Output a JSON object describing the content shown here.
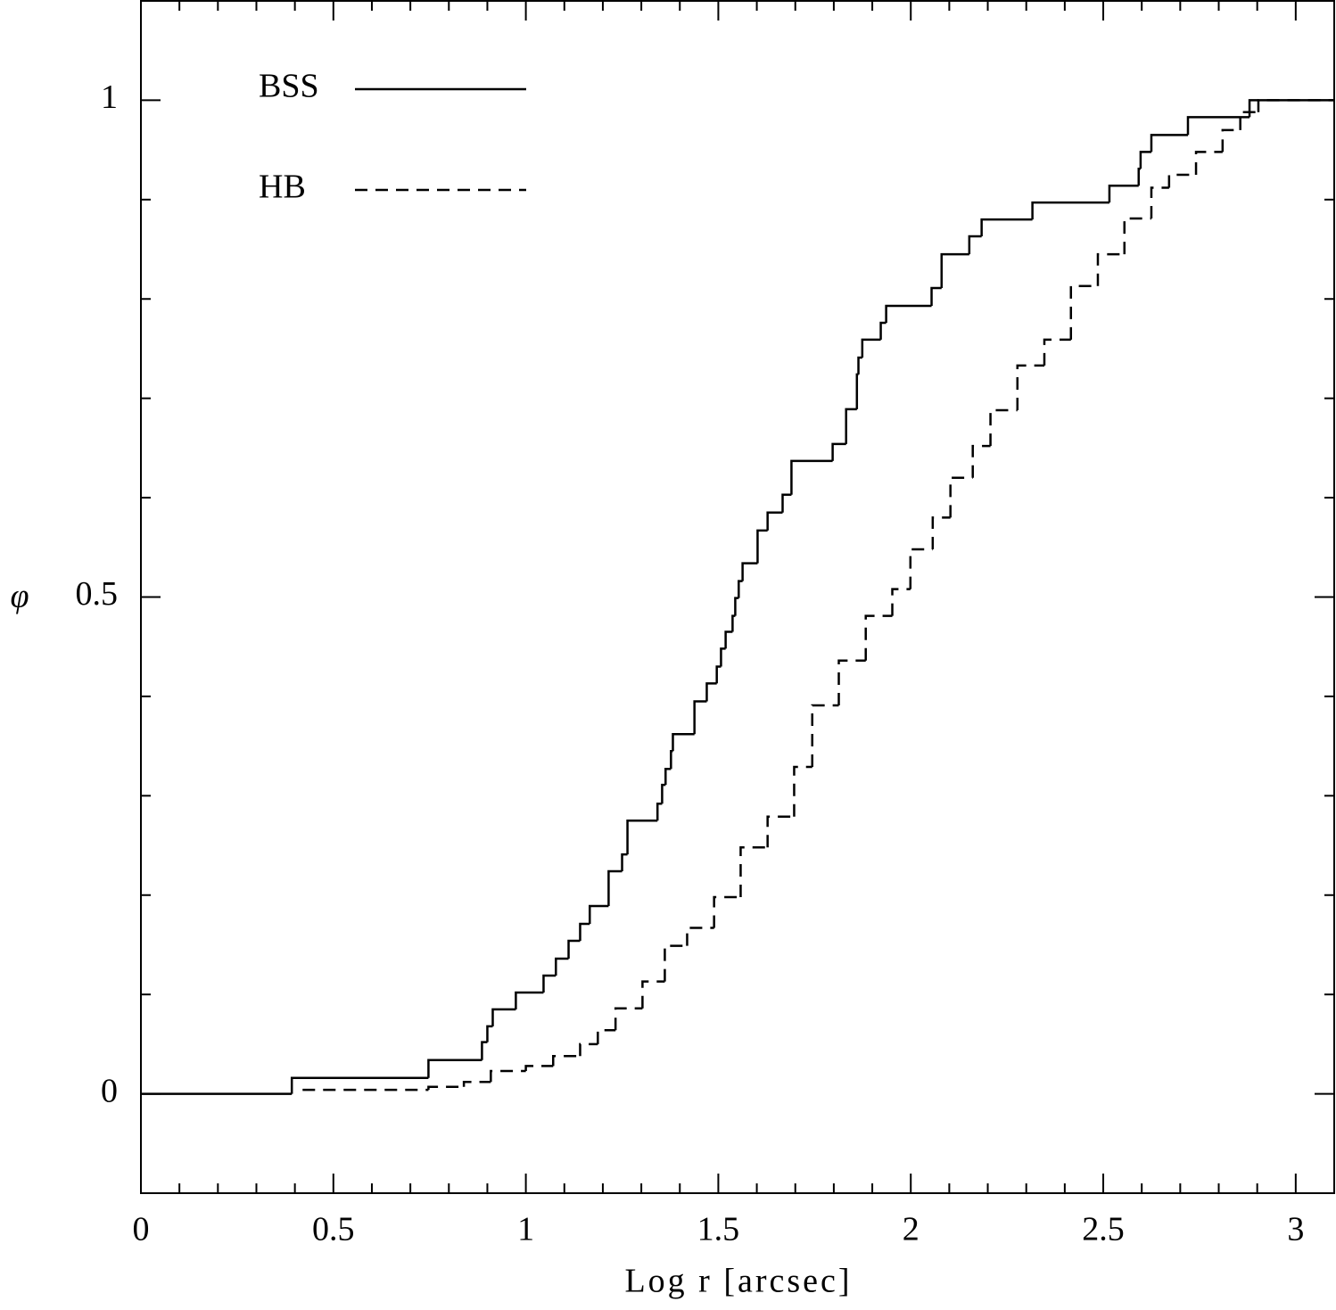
{
  "chart_data": {
    "type": "step",
    "x_label": "Log r [arcsec]",
    "y_label": "φ",
    "xlim": [
      0,
      3.1
    ],
    "ylim": [
      -0.1,
      1.1
    ],
    "xticks": [
      0,
      0.5,
      1,
      1.5,
      2,
      2.5,
      3
    ],
    "yticks": [
      0,
      0.5,
      1
    ],
    "xticks_minor": [
      0.1,
      0.2,
      0.3,
      0.4,
      0.6,
      0.7,
      0.8,
      0.9,
      1.1,
      1.2,
      1.3,
      1.4,
      1.6,
      1.7,
      1.8,
      1.9,
      2.1,
      2.2,
      2.3,
      2.4,
      2.6,
      2.7,
      2.8,
      2.9
    ],
    "yticks_minor": [
      0.1,
      0.2,
      0.3,
      0.4,
      0.6,
      0.7,
      0.8,
      0.9
    ],
    "legend": "upper left",
    "series": [
      {
        "name": "BSS",
        "color": "#000000",
        "linestyle": "solid",
        "x": [
          0,
          0.392,
          0.747,
          0.886,
          0.9,
          0.914,
          0.974,
          1.046,
          1.078,
          1.111,
          1.141,
          1.166,
          1.215,
          1.25,
          1.264,
          1.342,
          1.354,
          1.363,
          1.377,
          1.382,
          1.438,
          1.47,
          1.496,
          1.507,
          1.519,
          1.537,
          1.544,
          1.553,
          1.563,
          1.602,
          1.628,
          1.667,
          1.69,
          1.797,
          1.832,
          1.86,
          1.864,
          1.874,
          1.922,
          1.936,
          2.054,
          2.08,
          2.152,
          2.184,
          2.316,
          2.516,
          2.592,
          2.597,
          2.625,
          2.72,
          2.88
        ],
        "values": [
          0,
          0.016,
          0.034,
          0.052,
          0.068,
          0.085,
          0.102,
          0.119,
          0.136,
          0.154,
          0.171,
          0.189,
          0.224,
          0.241,
          0.275,
          0.292,
          0.311,
          0.327,
          0.345,
          0.362,
          0.395,
          0.413,
          0.43,
          0.448,
          0.465,
          0.481,
          0.499,
          0.516,
          0.534,
          0.567,
          0.585,
          0.603,
          0.637,
          0.654,
          0.689,
          0.724,
          0.741,
          0.759,
          0.776,
          0.793,
          0.811,
          0.845,
          0.863,
          0.88,
          0.897,
          0.914,
          0.931,
          0.948,
          0.965,
          0.983,
          1
        ]
      },
      {
        "name": "HB",
        "color": "#000000",
        "linestyle": "dashed",
        "x": [
          0.42,
          0.747,
          0.839,
          0.909,
          1.0,
          1.071,
          1.141,
          1.187,
          1.233,
          1.303,
          1.361,
          1.419,
          1.489,
          1.558,
          1.628,
          1.697,
          1.744,
          1.813,
          1.883,
          1.952,
          1.999,
          2.057,
          2.103,
          2.161,
          2.207,
          2.277,
          2.347,
          2.416,
          2.486,
          2.555,
          2.625,
          2.671,
          2.741,
          2.81,
          2.856,
          2.903
        ],
        "values": [
          0.004,
          0.007,
          0.012,
          0.023,
          0.028,
          0.038,
          0.05,
          0.064,
          0.086,
          0.113,
          0.149,
          0.167,
          0.198,
          0.248,
          0.279,
          0.329,
          0.391,
          0.436,
          0.481,
          0.508,
          0.548,
          0.58,
          0.62,
          0.652,
          0.688,
          0.733,
          0.759,
          0.813,
          0.845,
          0.881,
          0.912,
          0.925,
          0.948,
          0.97,
          0.988,
          1
        ]
      }
    ]
  }
}
